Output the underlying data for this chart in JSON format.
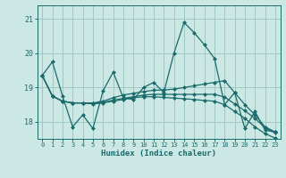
{
  "xlabel": "Humidex (Indice chaleur)",
  "xlim": [
    -0.5,
    23.5
  ],
  "ylim": [
    17.5,
    21.4
  ],
  "yticks": [
    18,
    19,
    20,
    21
  ],
  "xticks": [
    0,
    1,
    2,
    3,
    4,
    5,
    6,
    7,
    8,
    9,
    10,
    11,
    12,
    13,
    14,
    15,
    16,
    17,
    18,
    19,
    20,
    21,
    22,
    23
  ],
  "background_color": "#cce8e4",
  "grid_color": "#9fc8c4",
  "line_color": "#1a6b6b",
  "lines": [
    [
      19.35,
      19.75,
      18.75,
      17.85,
      18.2,
      17.8,
      18.9,
      19.45,
      18.7,
      18.65,
      19.0,
      19.15,
      18.85,
      20.0,
      20.9,
      20.6,
      20.25,
      19.85,
      18.5,
      18.85,
      17.8,
      18.3,
      17.75,
      17.7
    ],
    [
      19.35,
      18.75,
      18.6,
      18.55,
      18.55,
      18.55,
      18.6,
      18.7,
      18.78,
      18.83,
      18.88,
      18.92,
      18.93,
      18.95,
      19.0,
      19.05,
      19.1,
      19.15,
      19.2,
      18.85,
      18.5,
      18.2,
      17.85,
      17.7
    ],
    [
      19.35,
      18.75,
      18.6,
      18.55,
      18.55,
      18.53,
      18.57,
      18.63,
      18.68,
      18.73,
      18.78,
      18.8,
      18.8,
      18.8,
      18.8,
      18.8,
      18.8,
      18.8,
      18.72,
      18.52,
      18.32,
      18.1,
      17.82,
      17.68
    ],
    [
      19.35,
      18.75,
      18.6,
      18.55,
      18.55,
      18.52,
      18.55,
      18.6,
      18.65,
      18.7,
      18.73,
      18.73,
      18.71,
      18.69,
      18.67,
      18.65,
      18.62,
      18.6,
      18.5,
      18.3,
      18.1,
      17.85,
      17.65,
      17.52
    ]
  ]
}
